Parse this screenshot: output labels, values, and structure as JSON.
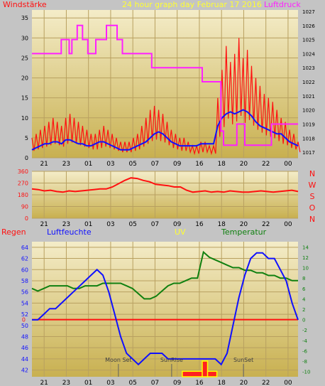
{
  "page_title": "24 hour graph day   Februar 17 2016",
  "colors": {
    "background": "#c4c4c4",
    "plot_top": "#f2e8c0",
    "plot_bottom": "#c8b050",
    "wind": "#ff1010",
    "wind_avg": "#1010ff",
    "pressure": "#ff20ff",
    "direction": "#ff1010",
    "humidity": "#1010ff",
    "temperature": "#108010",
    "rain_zero": "#ff1010",
    "uv": "#ffff00",
    "uv_bar": "#ff2020",
    "title": "#ffff30"
  },
  "chart_data": [
    {
      "type": "line",
      "name_left": "Windstärke",
      "name_right": "Luftdruck",
      "x_ticks": [
        "21",
        "23",
        "01",
        "03",
        "05",
        "07",
        "09",
        "16",
        "18",
        "20",
        "22",
        "00"
      ],
      "ylim_left": [
        0,
        37
      ],
      "yticks_left": [
        "0",
        "5",
        "10",
        "15",
        "20",
        "25",
        "30",
        "35"
      ],
      "ylim_right": [
        1016.6,
        1027.1
      ],
      "yticks_right": [
        "1017",
        "1018",
        "1019",
        "1020",
        "1021",
        "1022",
        "1023",
        "1024",
        "1025",
        "1026",
        "1027"
      ],
      "wind_avg": [
        2,
        2.5,
        3,
        3.5,
        3.5,
        4,
        4,
        3.5,
        4.5,
        4.5,
        4,
        3.5,
        3.5,
        3,
        3,
        3.5,
        4,
        4,
        3.5,
        3,
        2.5,
        2,
        2,
        2,
        2.5,
        3,
        3.5,
        4,
        5,
        6,
        6.5,
        6,
        5,
        4,
        3.5,
        3,
        3,
        3,
        3,
        3,
        3.5,
        3.5,
        3.5,
        3.5,
        8,
        10,
        11,
        11.5,
        11,
        11.5,
        12,
        11.5,
        10.5,
        9,
        8,
        7.5,
        7,
        6.5,
        6,
        6,
        5,
        4,
        3.5,
        3
      ],
      "wind_gust": [
        5,
        6,
        7,
        8,
        9,
        10,
        9,
        8,
        10,
        11,
        10,
        9,
        8,
        7,
        6,
        6,
        7,
        8,
        7,
        6,
        5,
        4,
        4,
        4,
        5,
        6,
        8,
        10,
        12,
        13,
        12,
        11,
        9,
        7,
        6,
        5,
        5,
        4,
        3,
        3,
        4,
        4,
        3,
        3,
        15,
        22,
        28,
        24,
        26,
        30,
        25,
        27,
        23,
        20,
        18,
        16,
        15,
        14,
        12,
        10,
        9,
        7,
        6,
        4
      ],
      "pressure": [
        {
          "x": 0,
          "y": 1024
        },
        {
          "x": 0.11,
          "y": 1024
        },
        {
          "x": 0.11,
          "y": 1025
        },
        {
          "x": 0.14,
          "y": 1025
        },
        {
          "x": 0.14,
          "y": 1024
        },
        {
          "x": 0.15,
          "y": 1024
        },
        {
          "x": 0.15,
          "y": 1025
        },
        {
          "x": 0.17,
          "y": 1025
        },
        {
          "x": 0.17,
          "y": 1026
        },
        {
          "x": 0.19,
          "y": 1026
        },
        {
          "x": 0.19,
          "y": 1025
        },
        {
          "x": 0.21,
          "y": 1025
        },
        {
          "x": 0.21,
          "y": 1024
        },
        {
          "x": 0.24,
          "y": 1024
        },
        {
          "x": 0.24,
          "y": 1025
        },
        {
          "x": 0.28,
          "y": 1025
        },
        {
          "x": 0.28,
          "y": 1026
        },
        {
          "x": 0.32,
          "y": 1026
        },
        {
          "x": 0.32,
          "y": 1025
        },
        {
          "x": 0.34,
          "y": 1025
        },
        {
          "x": 0.34,
          "y": 1024
        },
        {
          "x": 0.45,
          "y": 1024
        },
        {
          "x": 0.45,
          "y": 1023
        },
        {
          "x": 0.57,
          "y": 1023
        },
        {
          "x": 0.57,
          "y": 1023
        },
        {
          "x": 0.64,
          "y": 1023
        },
        {
          "x": 0.64,
          "y": 1022
        },
        {
          "x": 0.71,
          "y": 1022
        },
        {
          "x": 0.71,
          "y": 1018.5
        },
        {
          "x": 0.72,
          "y": 1018.5
        },
        {
          "x": 0.72,
          "y": 1017.5
        },
        {
          "x": 0.77,
          "y": 1017.5
        },
        {
          "x": 0.77,
          "y": 1019
        },
        {
          "x": 0.8,
          "y": 1019
        },
        {
          "x": 0.8,
          "y": 1017.5
        },
        {
          "x": 0.9,
          "y": 1017.5
        },
        {
          "x": 0.9,
          "y": 1019
        },
        {
          "x": 1.0,
          "y": 1019
        }
      ]
    },
    {
      "type": "line",
      "label_right": [
        "N",
        "W",
        "S",
        "O",
        "N"
      ],
      "ylim": [
        0,
        360
      ],
      "yticks": [
        "360",
        "270",
        "180",
        "90",
        "0"
      ],
      "x_ticks": [
        "21",
        "23",
        "01",
        "03",
        "05",
        "07",
        "09",
        "16",
        "18",
        "20",
        "22",
        "00"
      ],
      "direction": [
        225,
        220,
        210,
        215,
        205,
        200,
        210,
        205,
        210,
        215,
        220,
        225,
        225,
        240,
        265,
        290,
        310,
        305,
        290,
        280,
        260,
        255,
        250,
        240,
        240,
        215,
        200,
        205,
        210,
        200,
        205,
        200,
        210,
        205,
        200,
        200,
        205,
        210,
        205,
        200,
        205,
        210,
        215,
        205
      ]
    },
    {
      "type": "line",
      "labels": [
        "Regen",
        "Luftfeuchte",
        "UV",
        "Temperatur"
      ],
      "x_ticks": [
        "21",
        "23",
        "01",
        "03",
        "05",
        "07",
        "09",
        "16",
        "18",
        "20",
        "22",
        "00"
      ],
      "ylim_humidity": [
        40.8,
        65
      ],
      "yticks_humidity": [
        "42",
        "44",
        "46",
        "48",
        "50",
        "52",
        "54",
        "56",
        "58",
        "60",
        "62",
        "64"
      ],
      "ylim_temperature": [
        -11,
        15
      ],
      "yticks_temperature": [
        "-10",
        "-8",
        "-6",
        "-4",
        "-2",
        "0",
        "2",
        "4",
        "6",
        "8",
        "10",
        "12",
        "14"
      ],
      "rain_zero_label": "0",
      "events": [
        {
          "label": "Moon Set",
          "x": 0.325
        },
        {
          "label": "SunRise",
          "x": 0.525
        },
        {
          "label": "SunSet",
          "x": 0.795
        }
      ],
      "humidity": [
        51,
        51,
        52,
        53,
        53,
        54,
        55,
        56,
        57,
        58,
        59,
        60,
        59,
        56,
        52,
        48,
        45,
        44,
        43,
        44,
        45,
        45,
        45,
        44,
        44,
        44,
        44,
        44,
        44,
        44,
        44,
        44,
        43,
        45,
        50,
        55,
        59,
        62,
        63,
        63,
        62,
        62,
        60,
        58,
        54,
        51
      ],
      "temperature": [
        6,
        5.5,
        6,
        6.5,
        6.5,
        6.5,
        6.5,
        6,
        6,
        6.5,
        6.5,
        6.5,
        7,
        7,
        7,
        7,
        6.5,
        6,
        5,
        4,
        4,
        4.5,
        5.5,
        6.5,
        7,
        7,
        7.5,
        8,
        8,
        13,
        12,
        11.5,
        11,
        10.5,
        10,
        10,
        9.5,
        9.5,
        9,
        9,
        8.5,
        8.5,
        8,
        8,
        7.5,
        7.5
      ],
      "uv": [
        {
          "from": 0.565,
          "to": 0.695,
          "level": 0.35
        },
        {
          "from": 0.64,
          "to": 0.66,
          "level": 1
        }
      ]
    }
  ]
}
